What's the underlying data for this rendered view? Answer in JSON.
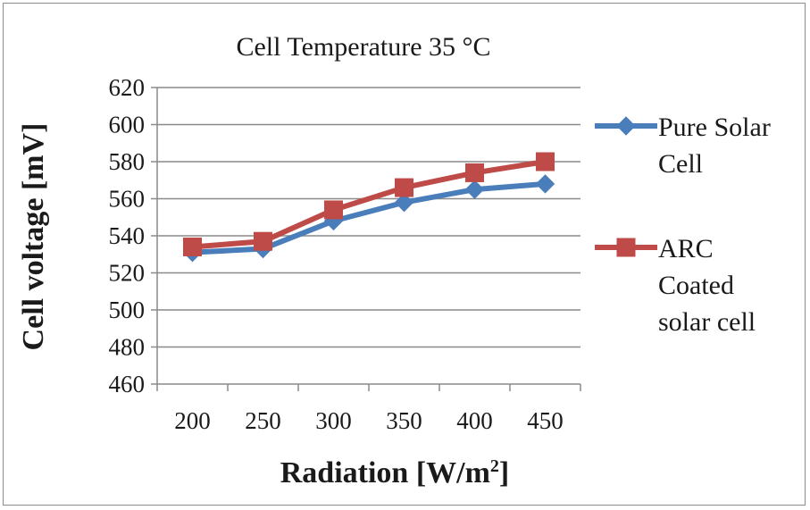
{
  "chart_data": {
    "type": "line",
    "title": "Cell Temperature 35 °C",
    "xlabel_main": "Radiation [W/m",
    "xlabel_sup": "2",
    "xlabel_end": "]",
    "ylabel": "Cell voltage [mV]",
    "categories": [
      "200",
      "250",
      "300",
      "350",
      "400",
      "450"
    ],
    "ylim": [
      460,
      620
    ],
    "yticks": [
      "460",
      "480",
      "500",
      "520",
      "540",
      "560",
      "580",
      "600",
      "620"
    ],
    "grid": "horizontal",
    "legend_position": "right",
    "series": [
      {
        "name": "Pure Solar Cell",
        "legend_lines": [
          "Pure Solar",
          "Cell"
        ],
        "color": "#4a7ebb",
        "marker": "diamond",
        "values": [
          531,
          533,
          548,
          558,
          565,
          568
        ]
      },
      {
        "name": "ARC Coated solar cell",
        "legend_lines": [
          "ARC",
          "Coated",
          "solar cell"
        ],
        "color": "#be4b48",
        "marker": "square",
        "values": [
          534,
          537,
          554,
          566,
          574,
          580
        ]
      }
    ]
  }
}
